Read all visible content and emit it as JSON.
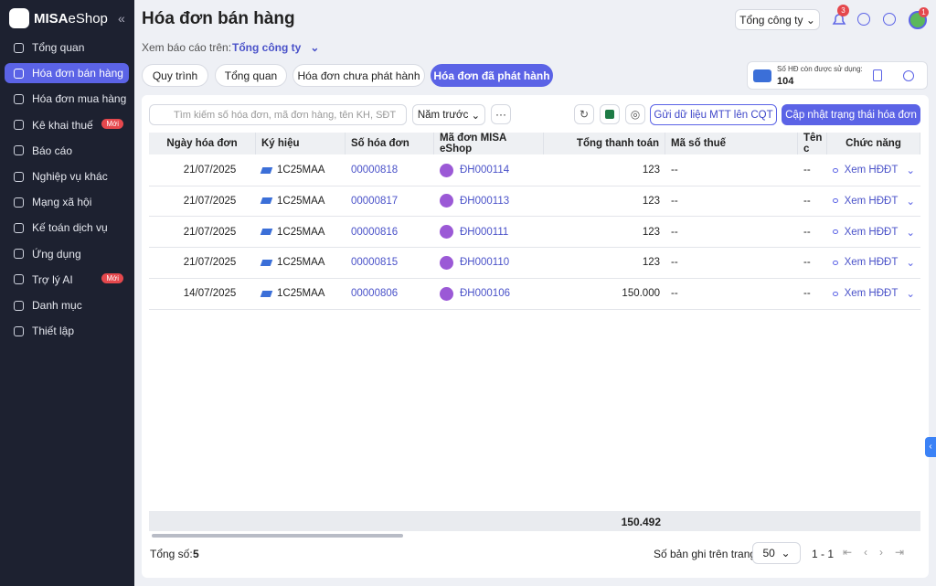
{
  "sidebar": {
    "brand": "MISA",
    "brand_suffix": "eShop",
    "collapse": "«",
    "menu": [
      {
        "label": "Tổng quan"
      },
      {
        "label": "Hóa đơn bán hàng"
      },
      {
        "label": "Hóa đơn mua hàng"
      },
      {
        "label": "Kê khai thuế",
        "badge": "Mới"
      },
      {
        "label": "Báo cáo"
      },
      {
        "label": "Nghiệp vụ khác"
      },
      {
        "label": "Mạng xã hội"
      },
      {
        "label": "Kế toán dịch vụ"
      },
      {
        "label": "Ứng dụng"
      },
      {
        "label": "Trợ lý AI",
        "badge": "Mới"
      },
      {
        "label": "Danh mục"
      },
      {
        "label": "Thiết lập"
      }
    ]
  },
  "header": {
    "title": "Hóa đơn bán hàng",
    "company_select": "Tổng công ty",
    "notification_count": 3,
    "avatar_badge": 1
  },
  "report_scope": {
    "label": "Xem báo cáo trên:",
    "value": "Tổng công ty"
  },
  "tabs": [
    "Quy trình",
    "Tổng quan",
    "Hóa đơn chưa phát hành",
    "Hóa đơn đã phát hành"
  ],
  "quota": {
    "label": "Số HĐ còn được sử dụng:",
    "value": 104
  },
  "toolbar": {
    "search_placeholder": "Tìm kiếm số hóa đơn, mã đơn hàng, tên KH, SĐT",
    "period": "Năm trước",
    "more": "···",
    "send_button": "Gửi dữ liệu MTT lên CQT",
    "update_button": "Cập nhật trạng thái hóa đơn"
  },
  "table": {
    "columns": [
      "Ngày hóa đơn",
      "Ký hiệu",
      "Số hóa đơn",
      "Mã đơn MISA eShop",
      "Tổng thanh toán",
      "Mã số thuế",
      "Tên c",
      "Chức năng"
    ],
    "rows": [
      [
        "21/07/2025",
        "1C25MAA",
        "00000818",
        "ĐH000114",
        "123",
        "--",
        "--",
        "Xem HĐĐT"
      ],
      [
        "21/07/2025",
        "1C25MAA",
        "00000817",
        "ĐH000113",
        "123",
        "--",
        "--",
        "Xem HĐĐT"
      ],
      [
        "21/07/2025",
        "1C25MAA",
        "00000816",
        "ĐH000111",
        "123",
        "--",
        "--",
        "Xem HĐĐT"
      ],
      [
        "21/07/2025",
        "1C25MAA",
        "00000815",
        "ĐH000110",
        "123",
        "--",
        "--",
        "Xem HĐĐT"
      ],
      [
        "14/07/2025",
        "1C25MAA",
        "00000806",
        "ĐH000106",
        "150.000",
        "--",
        "--",
        "Xem HĐĐT"
      ]
    ],
    "total": "150.492"
  },
  "footer": {
    "total_label": "Tổng số:",
    "total_count": 5,
    "page_size_label": "Số bản ghi trên trang",
    "page_size": 50,
    "range": "1 - 1"
  }
}
